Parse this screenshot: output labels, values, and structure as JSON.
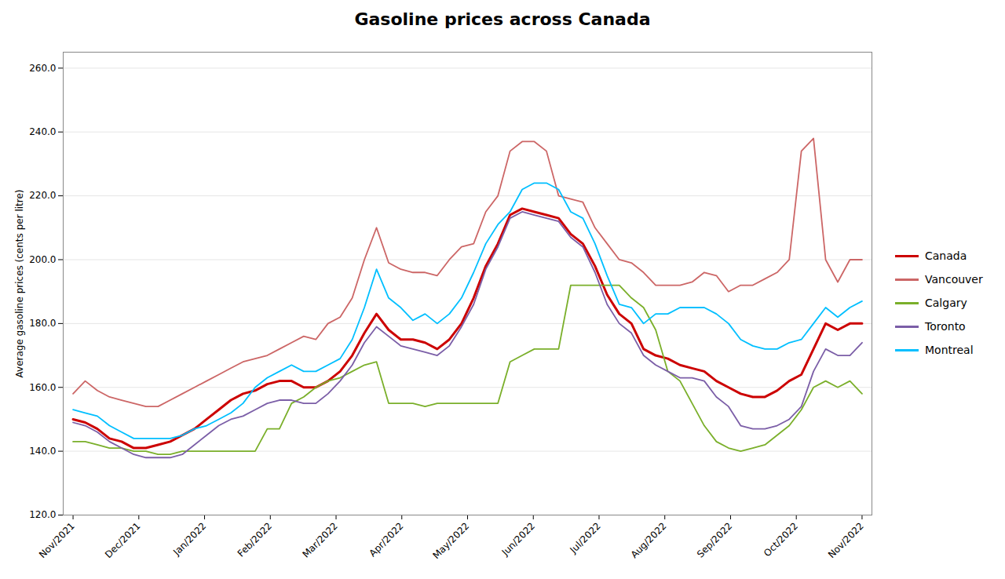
{
  "chart_data": {
    "type": "line",
    "title": "Gasoline prices across Canada",
    "ylabel": "Average gasoline prices (cents per litre)",
    "x": [
      0,
      0.184615,
      0.369231,
      0.553846,
      0.738462,
      0.923077,
      1.107692,
      1.292308,
      1.476923,
      1.661538,
      1.846154,
      2.030769,
      2.215385,
      2.4,
      2.584615,
      2.769231,
      2.953846,
      3.138462,
      3.323077,
      3.507692,
      3.692308,
      3.876923,
      4.061538,
      4.246154,
      4.430769,
      4.615385,
      4.8,
      4.984615,
      5.169231,
      5.353846,
      5.538462,
      5.723077,
      5.907692,
      6.092308,
      6.276923,
      6.461538,
      6.646154,
      6.830769,
      7.015385,
      7.2,
      7.384615,
      7.569231,
      7.753846,
      7.938462,
      8.123077,
      8.307692,
      8.492308,
      8.676923,
      8.861538,
      9.046154,
      9.230769,
      9.415385,
      9.6,
      9.784615,
      9.969231,
      10.153846,
      10.338462,
      10.523077,
      10.707692,
      10.892308,
      11.076923,
      11.261538,
      11.446154,
      11.630769,
      11.815385,
      12
    ],
    "xlim": [
      -0.15,
      12.15
    ],
    "xticks": [
      {
        "value": 0,
        "label": "Nov/2021"
      },
      {
        "value": 1,
        "label": "Dec/2021"
      },
      {
        "value": 2,
        "label": "Jan/2022"
      },
      {
        "value": 3,
        "label": "Feb/2022"
      },
      {
        "value": 4,
        "label": "Mar/2022"
      },
      {
        "value": 5,
        "label": "Apr/2022"
      },
      {
        "value": 6,
        "label": "May/2022"
      },
      {
        "value": 7,
        "label": "Jun/2022"
      },
      {
        "value": 8,
        "label": "Jul/2022"
      },
      {
        "value": 9,
        "label": "Aug/2022"
      },
      {
        "value": 10,
        "label": "Sep/2022"
      },
      {
        "value": 11,
        "label": "Oct/2022"
      },
      {
        "value": 12,
        "label": "Nov/2022"
      }
    ],
    "ylim": [
      120.0,
      265.0
    ],
    "yticks": [
      {
        "value": 120,
        "label": "120.0"
      },
      {
        "value": 140,
        "label": "140.0"
      },
      {
        "value": 160,
        "label": "160.0"
      },
      {
        "value": 180,
        "label": "180.0"
      },
      {
        "value": 200,
        "label": "200.0"
      },
      {
        "value": 220,
        "label": "220.0"
      },
      {
        "value": 240,
        "label": "240.0"
      },
      {
        "value": 260,
        "label": "260.0"
      }
    ],
    "grid": "y",
    "legend": "right",
    "series": [
      {
        "name": "Canada",
        "color": "#CC0000",
        "values": [
          150,
          149,
          147,
          144,
          143,
          141,
          141,
          142,
          143,
          145,
          147,
          150,
          153,
          156,
          158,
          159,
          161,
          162,
          162,
          160,
          160,
          162,
          165,
          170,
          177,
          183,
          178,
          175,
          175,
          174,
          172,
          175,
          180,
          188,
          198,
          205,
          214,
          216,
          215,
          214,
          213,
          208,
          205,
          198,
          189,
          183,
          180,
          172,
          170,
          169,
          167,
          166,
          165,
          162,
          160,
          158,
          157,
          157,
          159,
          162,
          164,
          172,
          180,
          178,
          180,
          180
        ]
      },
      {
        "name": "Vancouver",
        "color": "#CC6666",
        "values": [
          158,
          162,
          159,
          157,
          156,
          155,
          154,
          154,
          156,
          158,
          160,
          162,
          164,
          166,
          168,
          169,
          170,
          172,
          174,
          176,
          175,
          180,
          182,
          188,
          200,
          210,
          199,
          197,
          196,
          196,
          195,
          200,
          204,
          205,
          215,
          220,
          234,
          237,
          237,
          234,
          220,
          219,
          218,
          210,
          205,
          200,
          199,
          196,
          192,
          192,
          192,
          193,
          196,
          195,
          190,
          192,
          192,
          194,
          196,
          200,
          234,
          238,
          200,
          193,
          200,
          200
        ]
      },
      {
        "name": "Calgary",
        "color": "#7AAF2A",
        "values": [
          143,
          143,
          142,
          141,
          141,
          140,
          140,
          139,
          139,
          140,
          140,
          140,
          140,
          140,
          140,
          140,
          147,
          147,
          155,
          157,
          160,
          162,
          163,
          165,
          167,
          168,
          155,
          155,
          155,
          154,
          155,
          155,
          155,
          155,
          155,
          155,
          168,
          170,
          172,
          172,
          172,
          192,
          192,
          192,
          192,
          192,
          188,
          185,
          178,
          165,
          162,
          155,
          148,
          143,
          141,
          140,
          141,
          142,
          145,
          148,
          153,
          160,
          162,
          160,
          162,
          158
        ]
      },
      {
        "name": "Toronto",
        "color": "#7B5EA7",
        "values": [
          149,
          148,
          146,
          143,
          141,
          139,
          138,
          138,
          138,
          139,
          142,
          145,
          148,
          150,
          151,
          153,
          155,
          156,
          156,
          155,
          155,
          158,
          162,
          167,
          174,
          179,
          176,
          173,
          172,
          171,
          170,
          173,
          179,
          186,
          197,
          204,
          213,
          215,
          214,
          213,
          212,
          207,
          204,
          196,
          186,
          180,
          177,
          170,
          167,
          165,
          163,
          163,
          162,
          157,
          154,
          148,
          147,
          147,
          148,
          150,
          154,
          165,
          172,
          170,
          170,
          174
        ]
      },
      {
        "name": "Montreal",
        "color": "#00BFFF",
        "values": [
          153,
          152,
          151,
          148,
          146,
          144,
          144,
          144,
          144,
          145,
          147,
          148,
          150,
          152,
          155,
          160,
          163,
          165,
          167,
          165,
          165,
          167,
          169,
          175,
          185,
          197,
          188,
          185,
          181,
          183,
          180,
          183,
          188,
          196,
          205,
          211,
          215,
          222,
          224,
          224,
          222,
          215,
          213,
          205,
          195,
          186,
          185,
          180,
          183,
          183,
          185,
          185,
          185,
          183,
          180,
          175,
          173,
          172,
          172,
          174,
          175,
          180,
          185,
          182,
          185,
          187
        ]
      }
    ]
  }
}
